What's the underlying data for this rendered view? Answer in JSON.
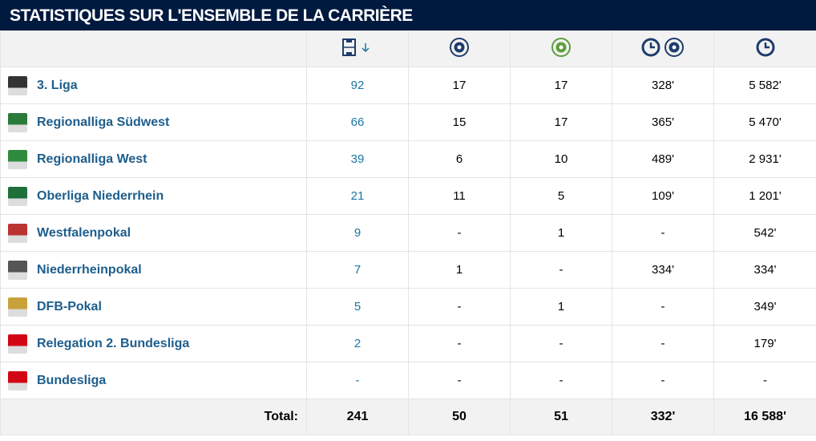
{
  "header": {
    "title": "STATISTIQUES SUR L'ENSEMBLE DE LA CARRIÈRE"
  },
  "table": {
    "rows": [
      {
        "competition": "3. Liga",
        "cells": [
          "92",
          "17",
          "17",
          "328'",
          "5 582'"
        ]
      },
      {
        "competition": "Regionalliga Südwest",
        "cells": [
          "66",
          "15",
          "17",
          "365'",
          "5 470'"
        ]
      },
      {
        "competition": "Regionalliga West",
        "cells": [
          "39",
          "6",
          "10",
          "489'",
          "2 931'"
        ]
      },
      {
        "competition": "Oberliga Niederrhein",
        "cells": [
          "21",
          "11",
          "5",
          "109'",
          "1 201'"
        ]
      },
      {
        "competition": "Westfalenpokal",
        "cells": [
          "9",
          "-",
          "1",
          "-",
          "542'"
        ]
      },
      {
        "competition": "Niederrheinpokal",
        "cells": [
          "7",
          "1",
          "-",
          "334'",
          "334'"
        ]
      },
      {
        "competition": "DFB-Pokal",
        "cells": [
          "5",
          "-",
          "1",
          "-",
          "349'"
        ]
      },
      {
        "competition": "Relegation 2. Bundesliga",
        "cells": [
          "2",
          "-",
          "-",
          "-",
          "179'"
        ]
      },
      {
        "competition": "Bundesliga",
        "cells": [
          "-",
          "-",
          "-",
          "-",
          "-"
        ]
      }
    ],
    "total": {
      "label": "Total:",
      "cells": [
        "241",
        "50",
        "51",
        "332'",
        "16 588'"
      ]
    }
  }
}
